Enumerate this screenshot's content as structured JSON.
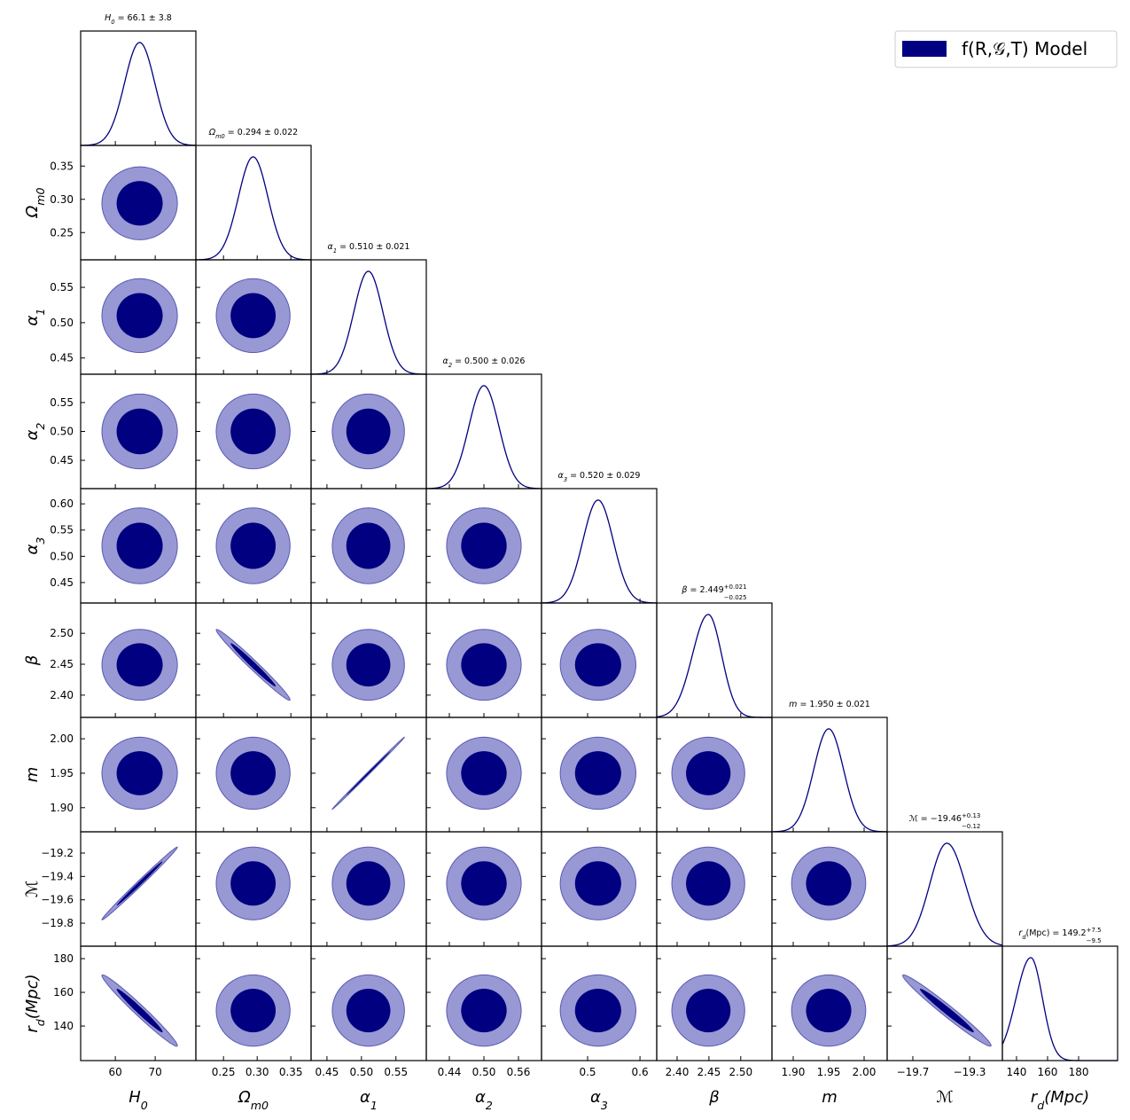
{
  "chart_data": {
    "type": "corner",
    "legend": {
      "label": "f(R,𝒢,T) Model",
      "color": "#000080",
      "corner": "upper right"
    },
    "contour_colors": [
      "#000080",
      "#9898d4"
    ],
    "contour_edge": "#5a5ab4",
    "params": [
      {
        "label": {
          "sym": "H",
          "sub": "0"
        },
        "title": {
          "sym": "H",
          "sub": "0",
          "text": " = 66.1 ± 3.8"
        },
        "mean": 66.1,
        "sigma": [
          3.8,
          3.8
        ],
        "xlim": [
          51.3,
          80.2
        ],
        "xticks": [
          60,
          70
        ]
      },
      {
        "label": {
          "sym": "Ω",
          "sub": "m0"
        },
        "title": {
          "sym": "Ω",
          "sub": "m0",
          "text": " = 0.294 ± 0.022"
        },
        "mean": 0.294,
        "sigma": [
          0.022,
          0.022
        ],
        "xlim": [
          0.209,
          0.38
        ],
        "xticks": [
          0.25,
          {
            "value": 0.3,
            "label": "0.30"
          },
          0.35
        ],
        "ylim": [
          0.209,
          0.381
        ],
        "yticks": [
          0.25,
          {
            "value": 0.3,
            "label": "0.30"
          },
          0.35
        ]
      },
      {
        "label": {
          "sym": "α",
          "sub": "1"
        },
        "title": {
          "sym": "α",
          "sub": "1",
          "text": " = 0.510 ± 0.021"
        },
        "mean": 0.51,
        "sigma": [
          0.021,
          0.021
        ],
        "xlim": [
          0.427,
          0.594
        ],
        "xticks": [
          0.45,
          {
            "value": 0.5,
            "label": "0.50"
          },
          0.55
        ],
        "ylim": [
          0.427,
          0.589
        ],
        "yticks": [
          0.45,
          {
            "value": 0.5,
            "label": "0.50"
          },
          0.55
        ]
      },
      {
        "label": {
          "sym": "α",
          "sub": "2"
        },
        "title": {
          "sym": "α",
          "sub": "2",
          "text": " = 0.500 ± 0.026"
        },
        "mean": 0.5,
        "sigma": [
          0.026,
          0.026
        ],
        "xlim": [
          0.4,
          0.6
        ],
        "xticks": [
          0.44,
          {
            "value": 0.5,
            "label": "0.50"
          },
          0.56
        ],
        "ylim": [
          0.401,
          0.599
        ],
        "yticks": [
          0.45,
          {
            "value": 0.5,
            "label": "0.50"
          },
          0.55
        ]
      },
      {
        "label": {
          "sym": "α",
          "sub": "3"
        },
        "title": {
          "sym": "α",
          "sub": "3",
          "text": " = 0.520 ± 0.029"
        },
        "mean": 0.52,
        "sigma": [
          0.029,
          0.029
        ],
        "xlim": [
          0.412,
          0.632
        ],
        "xticks": [
          0.5,
          0.6
        ],
        "ylim": [
          0.411,
          0.629
        ],
        "yticks": [
          0.45,
          {
            "value": 0.5,
            "label": "0.50"
          },
          0.55,
          {
            "value": 0.6,
            "label": "0.60"
          }
        ]
      },
      {
        "label": {
          "sym": "β"
        },
        "title": {
          "sym": "β",
          "text": " = 2.449",
          "plus": "+0.021",
          "minus": "−0.025"
        },
        "mean": 2.449,
        "sigma": [
          0.025,
          0.021
        ],
        "xlim": [
          2.368,
          2.549
        ],
        "xticks": [
          {
            "value": 2.4,
            "label": "2.40"
          },
          2.45,
          {
            "value": 2.5,
            "label": "2.50"
          }
        ],
        "ylim": [
          2.364,
          2.549
        ],
        "yticks": [
          {
            "value": 2.4,
            "label": "2.40"
          },
          2.45,
          {
            "value": 2.5,
            "label": "2.50"
          }
        ]
      },
      {
        "label": {
          "sym": "m"
        },
        "title": {
          "sym": "m",
          "text": " = 1.950 ± 0.021"
        },
        "mean": 1.95,
        "sigma": [
          0.021,
          0.021
        ],
        "xlim": [
          1.87,
          2.0325
        ],
        "xticks": [
          {
            "value": 1.9,
            "label": "1.90"
          },
          1.95,
          {
            "value": 2,
            "label": "2.00"
          }
        ],
        "ylim": [
          1.865,
          2.031
        ],
        "yticks": [
          {
            "value": 1.9,
            "label": "1.90"
          },
          1.95,
          {
            "value": 2,
            "label": "2.00"
          }
        ]
      },
      {
        "label": {
          "sym": "ℳ"
        },
        "title": {
          "sym": "ℳ",
          "text": " = −19.46",
          "plus": "+0.13",
          "minus": "−0.12"
        },
        "mean": -19.46,
        "sigma": [
          0.12,
          0.13
        ],
        "xlim": [
          -19.881,
          -19.069
        ],
        "xticks": [
          {
            "value": -19.7,
            "label": "−19.7"
          },
          {
            "value": -19.3,
            "label": "−19.3"
          }
        ],
        "ylim": [
          -19.997,
          -19.018
        ],
        "yticks": [
          {
            "value": -19.8,
            "label": "−19.8"
          },
          {
            "value": -19.6,
            "label": "−19.6"
          },
          {
            "value": -19.4,
            "label": "−19.4"
          },
          {
            "value": -19.2,
            "label": "−19.2"
          }
        ]
      },
      {
        "label": {
          "sym": "r",
          "sub": "d",
          "tail": "(Mpc)"
        },
        "title": {
          "sym": "r",
          "sub": "d",
          "text": "(Mpc) = 149.2",
          "plus": "+7.5",
          "minus": "−9.5"
        },
        "mean": 149.2,
        "sigma": [
          9.5,
          7.5
        ],
        "xlim": [
          130.9,
          205.1
        ],
        "xticks": [
          140,
          160,
          180
        ],
        "ylim": [
          119.5,
          187.4
        ],
        "yticks": [
          140,
          160,
          180
        ]
      }
    ],
    "correlations": [
      {
        "params": [
          0,
          7
        ],
        "rho": 0.995
      },
      {
        "params": [
          0,
          8
        ],
        "rho": -0.98
      },
      {
        "params": [
          1,
          5
        ],
        "rho": -0.985
      },
      {
        "params": [
          2,
          6
        ],
        "rho": 0.999
      },
      {
        "params": [
          7,
          8
        ],
        "rho": -0.98
      }
    ]
  }
}
